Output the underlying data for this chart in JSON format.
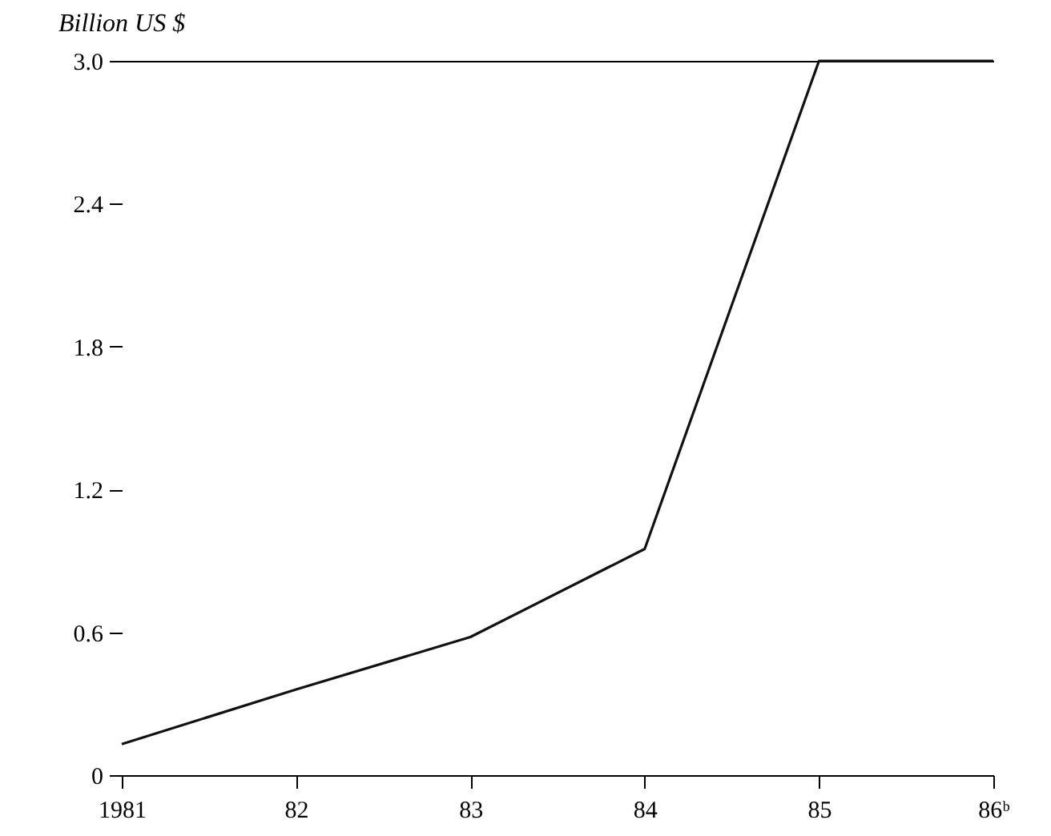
{
  "chart_data": {
    "type": "line",
    "ylabel": "Billion US $",
    "categories": [
      "1981",
      "82",
      "83",
      "84",
      "85",
      "86ᵇ"
    ],
    "series": [
      {
        "color": "#111111",
        "values": [
          0.13,
          0.36,
          0.58,
          0.95,
          3.0,
          3.0
        ]
      }
    ],
    "ylim": [
      0,
      3.0
    ],
    "yticks": [
      0,
      {
        "value": 0.6,
        "label": "0.6"
      },
      {
        "value": 1.2,
        "label": "1.2"
      },
      {
        "value": 1.8,
        "label": "1.8"
      },
      {
        "value": 2.4,
        "label": "2.4"
      },
      {
        "value": 3.0,
        "label": "3.0"
      }
    ],
    "grid": false,
    "marker": "none",
    "line_style": "solid"
  }
}
